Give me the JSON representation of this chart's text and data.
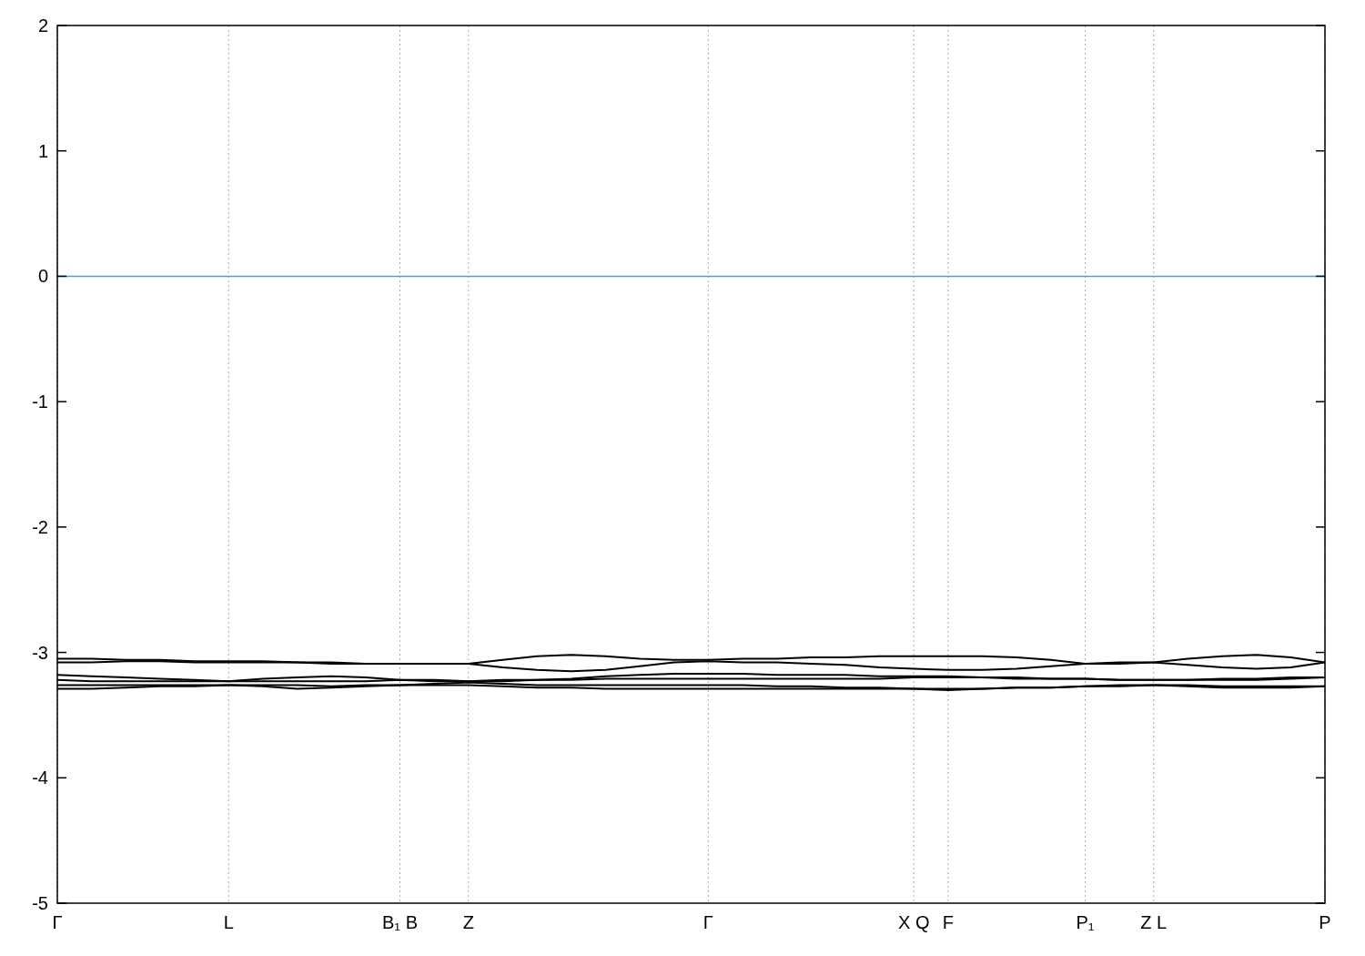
{
  "chart_data": {
    "type": "line",
    "ylim": [
      -5,
      2
    ],
    "yticks": [
      -5,
      -4,
      -3,
      -2,
      -1,
      0,
      1,
      2
    ],
    "categories": [
      "Γ",
      null,
      null,
      null,
      null,
      "L",
      null,
      null,
      null,
      null,
      "B₁ B",
      null,
      "Z",
      null,
      null,
      null,
      null,
      null,
      null,
      "Γ",
      null,
      null,
      null,
      null,
      null,
      "X Q",
      "F",
      null,
      null,
      null,
      "P₁",
      null,
      "Z L",
      null,
      null,
      null,
      null,
      "P"
    ],
    "grid": "x",
    "ref_lines": [
      {
        "axis": "y",
        "value": 0,
        "color": "#3ba7d8"
      }
    ],
    "series": [
      {
        "color": "#000000",
        "values": [
          -3.05,
          -3.05,
          -3.06,
          -3.06,
          -3.07,
          -3.07,
          -3.07,
          -3.08,
          -3.08,
          -3.09,
          -3.09,
          -3.09,
          -3.09,
          -3.06,
          -3.03,
          -3.02,
          -3.03,
          -3.05,
          -3.06,
          -3.06,
          -3.05,
          -3.05,
          -3.04,
          -3.04,
          -3.03,
          -3.03,
          -3.03,
          -3.03,
          -3.04,
          -3.06,
          -3.09,
          -3.09,
          -3.08,
          -3.05,
          -3.03,
          -3.02,
          -3.04,
          -3.08
        ]
      },
      {
        "color": "#000000",
        "values": [
          -3.08,
          -3.08,
          -3.07,
          -3.07,
          -3.08,
          -3.08,
          -3.08,
          -3.08,
          -3.09,
          -3.09,
          -3.09,
          -3.09,
          -3.09,
          -3.12,
          -3.14,
          -3.15,
          -3.14,
          -3.11,
          -3.08,
          -3.07,
          -3.08,
          -3.08,
          -3.09,
          -3.1,
          -3.12,
          -3.13,
          -3.14,
          -3.14,
          -3.13,
          -3.11,
          -3.09,
          -3.08,
          -3.08,
          -3.1,
          -3.12,
          -3.13,
          -3.12,
          -3.08
        ]
      },
      {
        "color": "#000000",
        "values": [
          -3.18,
          -3.19,
          -3.2,
          -3.21,
          -3.22,
          -3.23,
          -3.21,
          -3.2,
          -3.19,
          -3.2,
          -3.22,
          -3.22,
          -3.23,
          -3.22,
          -3.22,
          -3.21,
          -3.19,
          -3.18,
          -3.17,
          -3.17,
          -3.17,
          -3.18,
          -3.18,
          -3.18,
          -3.19,
          -3.19,
          -3.19,
          -3.2,
          -3.2,
          -3.21,
          -3.21,
          -3.22,
          -3.22,
          -3.22,
          -3.21,
          -3.21,
          -3.2,
          -3.2
        ]
      },
      {
        "color": "#000000",
        "values": [
          -3.22,
          -3.23,
          -3.23,
          -3.23,
          -3.23,
          -3.23,
          -3.23,
          -3.23,
          -3.23,
          -3.23,
          -3.22,
          -3.23,
          -3.23,
          -3.23,
          -3.22,
          -3.22,
          -3.21,
          -3.21,
          -3.21,
          -3.21,
          -3.21,
          -3.21,
          -3.21,
          -3.21,
          -3.21,
          -3.2,
          -3.2,
          -3.2,
          -3.21,
          -3.21,
          -3.21,
          -3.22,
          -3.22,
          -3.22,
          -3.22,
          -3.22,
          -3.21,
          -3.2
        ]
      },
      {
        "color": "#000000",
        "values": [
          -3.26,
          -3.26,
          -3.26,
          -3.26,
          -3.26,
          -3.26,
          -3.26,
          -3.26,
          -3.27,
          -3.26,
          -3.26,
          -3.25,
          -3.24,
          -3.25,
          -3.26,
          -3.26,
          -3.26,
          -3.26,
          -3.26,
          -3.26,
          -3.26,
          -3.27,
          -3.27,
          -3.28,
          -3.28,
          -3.29,
          -3.29,
          -3.29,
          -3.28,
          -3.28,
          -3.27,
          -3.26,
          -3.26,
          -3.26,
          -3.27,
          -3.27,
          -3.27,
          -3.27
        ]
      },
      {
        "color": "#000000",
        "values": [
          -3.29,
          -3.29,
          -3.28,
          -3.27,
          -3.27,
          -3.26,
          -3.27,
          -3.29,
          -3.28,
          -3.27,
          -3.26,
          -3.26,
          -3.26,
          -3.27,
          -3.28,
          -3.28,
          -3.29,
          -3.29,
          -3.29,
          -3.29,
          -3.29,
          -3.29,
          -3.29,
          -3.29,
          -3.29,
          -3.29,
          -3.3,
          -3.29,
          -3.28,
          -3.28,
          -3.27,
          -3.27,
          -3.26,
          -3.27,
          -3.28,
          -3.28,
          -3.28,
          -3.27
        ]
      }
    ]
  }
}
